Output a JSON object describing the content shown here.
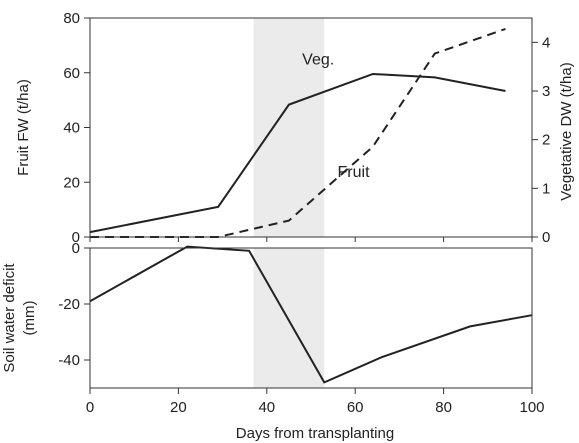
{
  "chart_data": [
    {
      "type": "line",
      "panel": "top",
      "xlabel": "",
      "ylabel": "Fruit FW (t/ha)",
      "y2label": "Vegetative DW (t/ha)",
      "xlim": [
        0,
        100
      ],
      "ylim": [
        0,
        80
      ],
      "y2lim": [
        0,
        4.5
      ],
      "yticks": [
        0,
        20,
        40,
        60,
        80
      ],
      "y2ticks": [
        0,
        1,
        2,
        3,
        4
      ],
      "shaded_x_range": [
        37,
        53
      ],
      "series": [
        {
          "name": "Veg.",
          "axis": "right",
          "linestyle": "solid",
          "x": [
            0,
            29,
            45,
            64,
            78,
            94
          ],
          "y": [
            0.1,
            0.62,
            2.72,
            3.35,
            3.28,
            3.0
          ]
        },
        {
          "name": "Fruit",
          "axis": "left",
          "linestyle": "dashed",
          "x": [
            0,
            29,
            45,
            64,
            78,
            94
          ],
          "y": [
            0,
            0,
            6,
            33,
            67,
            76
          ]
        }
      ],
      "annotations": [
        {
          "text": "Veg.",
          "x": 48,
          "y": 63,
          "axis": "left"
        },
        {
          "text": "Fruit",
          "x": 56,
          "y": 22,
          "axis": "left"
        }
      ]
    },
    {
      "type": "line",
      "panel": "bottom",
      "xlabel": "Days from transplanting",
      "ylabel": "Soil water deficit (mm)",
      "ylabel_lines": [
        "Soil water deficit",
        "(mm)"
      ],
      "xlim": [
        0,
        100
      ],
      "ylim": [
        -50,
        0
      ],
      "xticks": [
        0,
        20,
        40,
        60,
        80,
        100
      ],
      "yticks": [
        0,
        -20,
        -40
      ],
      "shaded_x_range": [
        37,
        53
      ],
      "series": [
        {
          "name": "",
          "linestyle": "solid",
          "x": [
            0,
            22,
            36,
            53,
            66,
            86,
            100
          ],
          "y": [
            -19,
            0.5,
            -1,
            -48,
            -39,
            -28,
            -24
          ]
        }
      ]
    }
  ],
  "colors": {
    "line": "#222222",
    "shade": "#ebebeb",
    "axis": "#333333"
  }
}
